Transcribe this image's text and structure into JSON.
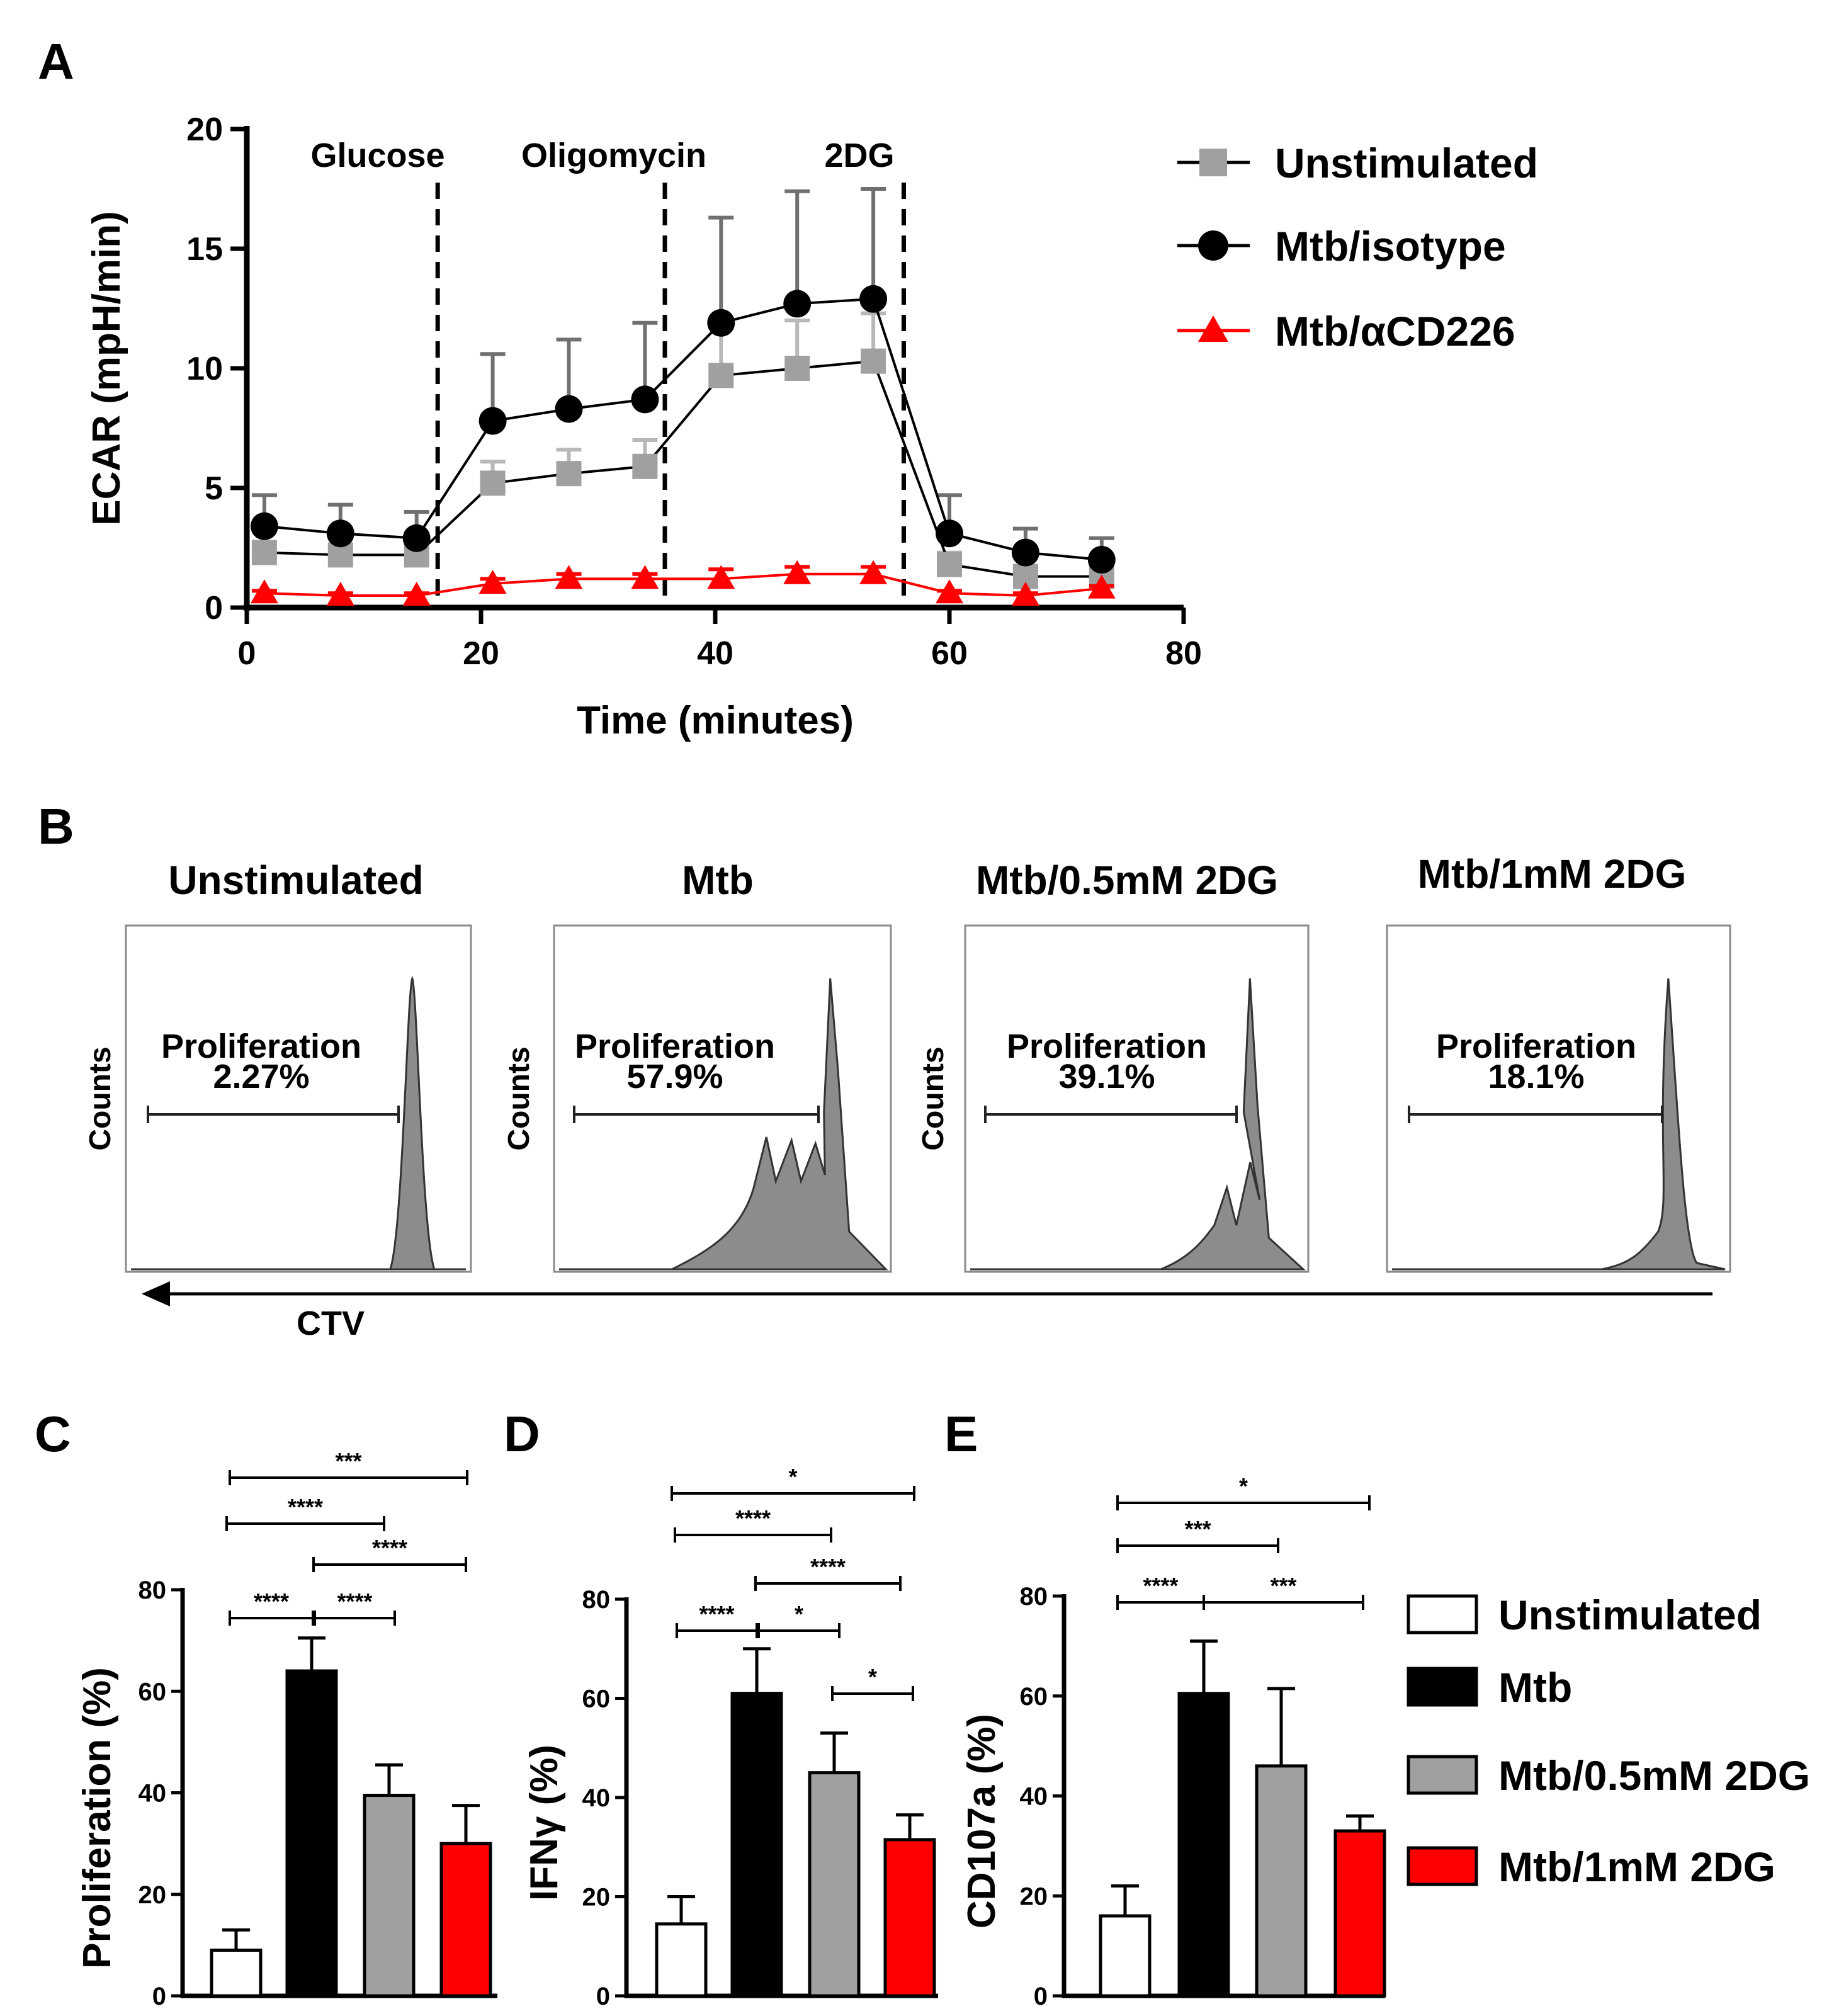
{
  "chart_data": [
    {
      "panel": "A",
      "type": "line",
      "xlabel": "Time (minutes)",
      "ylabel": "ECAR (mpH/min)",
      "xlim": [
        0,
        80
      ],
      "ylim": [
        0,
        20
      ],
      "xticks": [
        0,
        20,
        40,
        60,
        80
      ],
      "yticks": [
        0,
        5,
        10,
        15,
        20
      ],
      "x": [
        1.5,
        8,
        14.5,
        21,
        27.5,
        34,
        40.5,
        47,
        53.5,
        60,
        66.5,
        73
      ],
      "injections": [
        {
          "label": "Glucose",
          "x": 16.3
        },
        {
          "label": "Oligomycin",
          "x": 35.7
        },
        {
          "label": "2DG",
          "x": 56.1
        }
      ],
      "series": [
        {
          "name": "Unstimulated",
          "color": "#a0a0a0",
          "marker": "square",
          "values": [
            2.3,
            2.2,
            2.2,
            5.2,
            5.6,
            5.9,
            9.7,
            10.0,
            10.3,
            1.8,
            1.3,
            1.3
          ],
          "errors": [
            0.4,
            0.3,
            0.3,
            0.9,
            1.0,
            1.1,
            2.2,
            2.0,
            2.0,
            0.5,
            0.3,
            0.3
          ]
        },
        {
          "name": "Mtb/isotype",
          "color": "#000000",
          "marker": "circle",
          "values": [
            3.4,
            3.1,
            2.9,
            7.8,
            8.3,
            8.7,
            11.9,
            12.7,
            12.9,
            3.1,
            2.3,
            2.0
          ],
          "errors": [
            1.3,
            1.2,
            1.1,
            2.8,
            2.9,
            3.2,
            4.4,
            4.7,
            4.6,
            1.6,
            1.0,
            0.9
          ]
        },
        {
          "name": "Mtb/αCD226",
          "color": "#ff0000",
          "marker": "triangle",
          "values": [
            0.6,
            0.5,
            0.5,
            1.0,
            1.2,
            1.2,
            1.2,
            1.4,
            1.4,
            0.6,
            0.5,
            0.8
          ],
          "errors": [
            0.1,
            0.1,
            0.1,
            0.2,
            0.2,
            0.2,
            0.4,
            0.3,
            0.3,
            0.1,
            0.1,
            0.1
          ]
        }
      ]
    },
    {
      "panel": "B",
      "type": "histogram",
      "xlabel": "CTV",
      "ylabel": "Counts",
      "gate_label": "Proliferation",
      "plots": [
        {
          "title": "Unstimulated",
          "value": "2.27%"
        },
        {
          "title": "Mtb",
          "value": "57.9%"
        },
        {
          "title": "Mtb/0.5mM 2DG",
          "value": "39.1%"
        },
        {
          "title": "Mtb/1mM 2DG",
          "value": "18.1%"
        }
      ]
    },
    {
      "panel": "C",
      "type": "bar",
      "ylabel": "Proliferation (%)",
      "ylim": [
        0,
        80
      ],
      "yticks": [
        0,
        20,
        40,
        60,
        80
      ],
      "categories": [
        "Unstimulated",
        "Mtb",
        "Mtb/0.5mM 2DG",
        "Mtb/1mM 2DG"
      ],
      "values": [
        9,
        64,
        39.5,
        30
      ],
      "errors": [
        4,
        6.5,
        6,
        7.5
      ],
      "significance": [
        {
          "from": 0,
          "to": 3,
          "label": "***"
        },
        {
          "from": 0,
          "to": 2,
          "label": "****"
        },
        {
          "from": 1,
          "to": 3,
          "label": "****"
        },
        {
          "from": 0,
          "to": 1,
          "label": "****"
        },
        {
          "from": 1,
          "to": 2,
          "label": "****"
        }
      ]
    },
    {
      "panel": "D",
      "type": "bar",
      "ylabel": "IFNγ (%)",
      "ylim": [
        0,
        80
      ],
      "yticks": [
        0,
        20,
        40,
        60,
        80
      ],
      "categories": [
        "Unstimulated",
        "Mtb",
        "Mtb/0.5mM 2DG",
        "Mtb/1mM 2DG"
      ],
      "values": [
        14.5,
        61,
        45,
        31.5
      ],
      "errors": [
        5.5,
        9,
        8,
        5
      ],
      "significance": [
        {
          "from": 0,
          "to": 3,
          "label": "*"
        },
        {
          "from": 0,
          "to": 2,
          "label": "****"
        },
        {
          "from": 1,
          "to": 3,
          "label": "****"
        },
        {
          "from": 0,
          "to": 1,
          "label": "****"
        },
        {
          "from": 1,
          "to": 2,
          "label": "*"
        },
        {
          "from": 2,
          "to": 3,
          "label": "*"
        }
      ]
    },
    {
      "panel": "E",
      "type": "bar",
      "ylabel": "CD107a (%)",
      "ylim": [
        0,
        80
      ],
      "yticks": [
        0,
        20,
        40,
        60,
        80
      ],
      "categories": [
        "Unstimulated",
        "Mtb",
        "Mtb/0.5mM 2DG",
        "Mtb/1mM 2DG"
      ],
      "values": [
        16,
        60.5,
        46,
        33
      ],
      "errors": [
        6,
        10.5,
        15.5,
        3
      ],
      "significance": [
        {
          "from": 0,
          "to": 3,
          "label": "*"
        },
        {
          "from": 0,
          "to": 2,
          "label": "***"
        },
        {
          "from": 0,
          "to": 1,
          "label": "****"
        },
        {
          "from": 1,
          "to": 3,
          "label": "***"
        }
      ]
    }
  ],
  "bar_legend": [
    {
      "label": "Unstimulated",
      "color": "#ffffff"
    },
    {
      "label": "Mtb",
      "color": "#000000"
    },
    {
      "label": "Mtb/0.5mM 2DG",
      "color": "#a0a0a0"
    },
    {
      "label": "Mtb/1mM 2DG",
      "color": "#ff0000"
    }
  ],
  "panel_letters": [
    "A",
    "B",
    "C",
    "D",
    "E"
  ]
}
